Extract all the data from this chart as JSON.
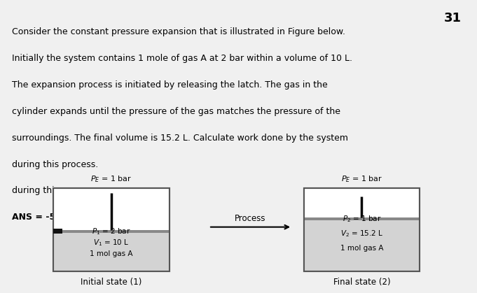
{
  "page_number": "31",
  "paragraph_lines": [
    "Consider the constant pressure expansion that is illustrated in Figure below.",
    "Initially the system contains 1 mole of gas A at 2 bar within a volume of 10 L.",
    "The expansion process is initiated by releasing the latch. The gas in the",
    "cylinder expands until the pressure of the gas matches the pressure of the",
    "surroundings. The final volume is 15.2 L. Calculate work done by the system",
    "during this process."
  ],
  "answer_label": "ANS = -520J",
  "background_color": "#f0f0f0",
  "box_color": "#d3d3d3",
  "box_edge_color": "#555555",
  "piston_color": "#888888",
  "latch_color": "#111111",
  "process_label": "Process",
  "initial_label": "Initial state (1)",
  "final_label": "Final state (2)",
  "initial_pe_label": "$P_E$ = 1 bar",
  "final_pe_label": "$P_E$ = 1 bar",
  "initial_box_text_lines": [
    "$P_1$ = 2 bar",
    "$V_1$ = 10 L",
    "1 mol gas A"
  ],
  "final_box_text_lines": [
    "$P_2$ = 1 bar",
    "$V_2$ = 15.2 L",
    "1 mol gas A"
  ],
  "fig_bg": "#f0f0f0",
  "text_color": "#000000"
}
